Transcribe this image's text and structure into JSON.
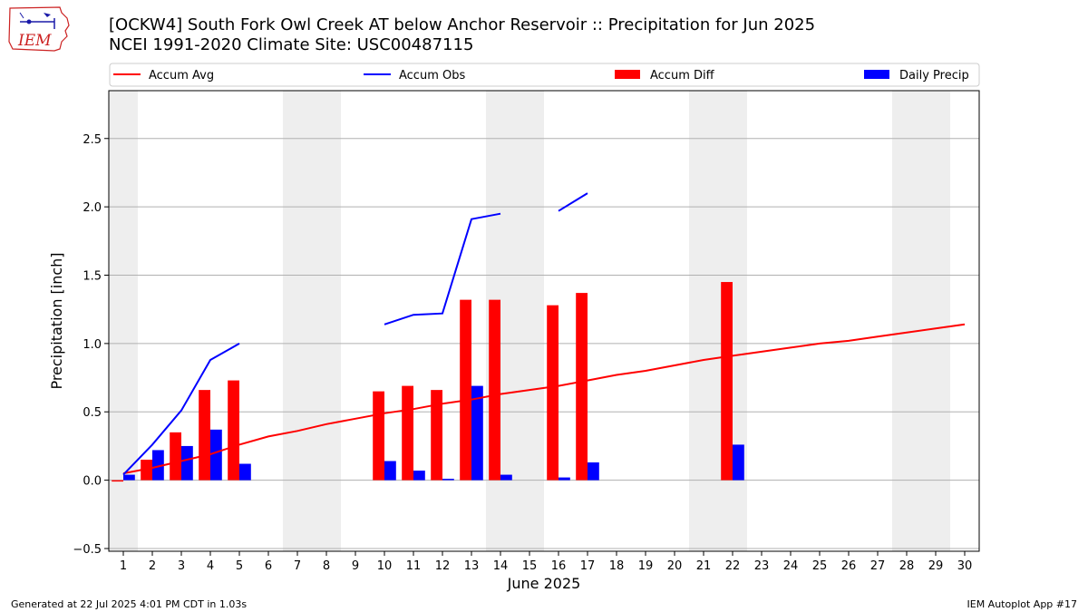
{
  "header": {
    "title_line1": "[OCKW4] South Fork Owl Creek  AT below Anchor Reservoir :: Precipitation for Jun 2025",
    "title_line2": "NCEI 1991-2020 Climate Site: USC00487115",
    "logo_text": "IEM"
  },
  "footer": {
    "generated": "Generated at 22 Jul 2025 4:01 PM CDT in 1.03s",
    "app": "IEM Autoplot App #17"
  },
  "chart_data": {
    "type": "bar",
    "xlabel": "June 2025",
    "ylabel": "Precipitation [inch]",
    "ylim": [
      -0.52,
      2.85
    ],
    "xlim": [
      0.5,
      30.5
    ],
    "yticks": [
      -0.5,
      0.0,
      0.5,
      1.0,
      1.5,
      2.0,
      2.5
    ],
    "ytick_labels": [
      "−0.5",
      "0.0",
      "0.5",
      "1.0",
      "1.5",
      "2.0",
      "2.5"
    ],
    "days": [
      1,
      2,
      3,
      4,
      5,
      6,
      7,
      8,
      9,
      10,
      11,
      12,
      13,
      14,
      15,
      16,
      17,
      18,
      19,
      20,
      21,
      22,
      23,
      24,
      25,
      26,
      27,
      28,
      29,
      30
    ],
    "weekend_days": [
      1,
      7,
      8,
      14,
      15,
      21,
      22,
      28,
      29
    ],
    "grid": "horizontal",
    "legend_position": "top",
    "legend": [
      {
        "label": "Accum Avg",
        "kind": "line",
        "color": "#ff0000"
      },
      {
        "label": "Accum Obs",
        "kind": "line",
        "color": "#0000ff"
      },
      {
        "label": "Accum Diff",
        "kind": "bar",
        "color": "#ff0000"
      },
      {
        "label": "Daily Precip",
        "kind": "bar",
        "color": "#0000ff"
      }
    ],
    "series": {
      "accum_avg": [
        0.05,
        0.09,
        0.14,
        0.19,
        0.26,
        0.32,
        0.36,
        0.41,
        0.45,
        0.49,
        0.52,
        0.56,
        0.59,
        0.63,
        0.66,
        0.69,
        0.73,
        0.77,
        0.8,
        0.84,
        0.88,
        0.91,
        0.94,
        0.97,
        1.0,
        1.02,
        1.05,
        1.08,
        1.11,
        1.14
      ],
      "accum_obs": [
        0.04,
        0.26,
        0.51,
        0.88,
        1.0,
        null,
        null,
        null,
        null,
        1.14,
        1.21,
        1.22,
        1.91,
        1.95,
        null,
        1.97,
        2.1,
        null,
        null,
        null,
        null,
        null,
        null,
        null,
        null,
        null,
        null,
        null,
        null,
        null
      ],
      "accum_diff": [
        -0.01,
        0.15,
        0.35,
        0.66,
        0.73,
        null,
        null,
        null,
        null,
        0.65,
        0.69,
        0.66,
        1.32,
        1.32,
        null,
        1.28,
        1.37,
        null,
        null,
        null,
        null,
        1.45,
        null,
        null,
        null,
        null,
        null,
        null,
        null,
        null
      ],
      "daily_precip": [
        0.04,
        0.22,
        0.25,
        0.37,
        0.12,
        null,
        null,
        null,
        null,
        0.14,
        0.07,
        0.01,
        0.69,
        0.04,
        null,
        0.02,
        0.13,
        null,
        null,
        null,
        null,
        0.26,
        null,
        null,
        null,
        null,
        null,
        null,
        null,
        null
      ]
    },
    "colors": {
      "avg": "#ff0000",
      "obs": "#0000ff",
      "weekend": "#eeeeee",
      "grid": "#b0b0b0",
      "logo": "#cc2222"
    }
  }
}
